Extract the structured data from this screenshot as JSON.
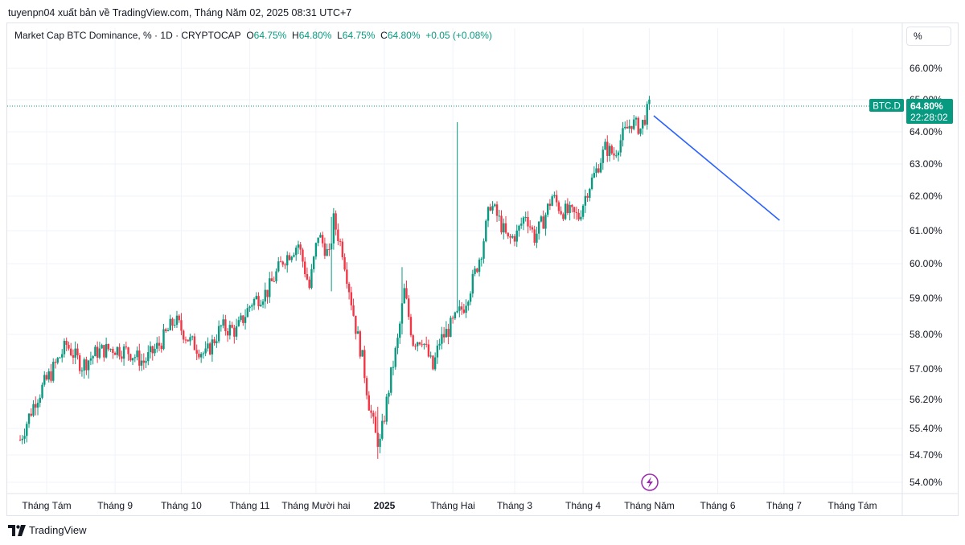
{
  "header": {
    "publisher_text": "tuyenpn04 xuất bản về TradingView.com, Tháng Năm 02, 2025 08:31 UTC+7"
  },
  "legend": {
    "symbol": "Market Cap BTC Dominance, % · 1D · CRYPTOCAP",
    "o_label": "O",
    "o_value": "64.75%",
    "h_label": "H",
    "h_value": "64.80%",
    "l_label": "L",
    "l_value": "64.75%",
    "c_label": "C",
    "c_value": "64.80%",
    "change": "+0.05 (+0.08%)"
  },
  "toolbar": {
    "unit_label": "%"
  },
  "price_badge": {
    "symbol": "BTC.D",
    "price": "64.80%",
    "countdown": "22:28:02"
  },
  "footer": {
    "brand": "TradingView"
  },
  "colors": {
    "up": "#089981",
    "down": "#f23645",
    "trendline": "#2962ff",
    "grid": "#f0f3fa",
    "badge": "#089981",
    "lightning": "#9c27b0"
  },
  "icons": {
    "lightning": "lightning-icon",
    "logo": "tradingview-logo-icon"
  },
  "chart_data": {
    "type": "candlestick",
    "title": "Market Cap BTC Dominance, % · 1D · CRYPTOCAP",
    "y_ticks": [
      "66.00%",
      "65.00%",
      "64.00%",
      "63.00%",
      "62.00%",
      "61.00%",
      "60.00%",
      "59.00%",
      "58.00%",
      "57.00%",
      "56.20%",
      "55.40%",
      "54.70%",
      "54.00%"
    ],
    "y_tick_values": [
      66.0,
      65.0,
      64.0,
      63.0,
      62.0,
      61.0,
      60.0,
      59.0,
      58.0,
      57.0,
      56.2,
      55.4,
      54.7,
      54.0
    ],
    "x_ticks": [
      "Tháng Tám",
      "Tháng 9",
      "Tháng 10",
      "Tháng 11",
      "Tháng Mười hai",
      "2025",
      "Tháng Hai",
      "Tháng 3",
      "Tháng 4",
      "Tháng Năm",
      "Tháng 6",
      "Tháng 7",
      "Tháng Tám"
    ],
    "x_tick_dates": [
      "2024-08-01",
      "2024-09-01",
      "2024-10-01",
      "2024-11-01",
      "2024-12-01",
      "2025-01-01",
      "2025-02-01",
      "2025-03-01",
      "2025-04-01",
      "2025-05-01",
      "2025-06-01",
      "2025-07-01",
      "2025-08-01"
    ],
    "bold_ticks": [
      "2025"
    ],
    "last_price": 64.8,
    "trendline": {
      "start": [
        "2025-05-03",
        64.5
      ],
      "end": [
        "2025-06-29",
        61.3
      ]
    },
    "price_path": [
      [
        "2024-07-20",
        55.1
      ],
      [
        "2024-07-27",
        56.2
      ],
      [
        "2024-08-03",
        56.9
      ],
      [
        "2024-08-10",
        57.7
      ],
      [
        "2024-08-17",
        57.1
      ],
      [
        "2024-08-24",
        57.5
      ],
      [
        "2024-08-31",
        57.6
      ],
      [
        "2024-09-07",
        57.5
      ],
      [
        "2024-09-14",
        57.2
      ],
      [
        "2024-09-21",
        57.7
      ],
      [
        "2024-09-28",
        58.4
      ],
      [
        "2024-10-05",
        57.8
      ],
      [
        "2024-10-12",
        57.4
      ],
      [
        "2024-10-19",
        58.2
      ],
      [
        "2024-10-26",
        58.1
      ],
      [
        "2024-11-02",
        58.9
      ],
      [
        "2024-11-09",
        59.2
      ],
      [
        "2024-11-16",
        60.1
      ],
      [
        "2024-11-23",
        60.6
      ],
      [
        "2024-11-28",
        59.3
      ],
      [
        "2024-12-02",
        60.9
      ],
      [
        "2024-12-07",
        60.2
      ],
      [
        "2024-12-09",
        61.3
      ],
      [
        "2024-12-13",
        60.4
      ],
      [
        "2024-12-16",
        59.3
      ],
      [
        "2024-12-19",
        58.2
      ],
      [
        "2024-12-22",
        57.3
      ],
      [
        "2024-12-25",
        56.1
      ],
      [
        "2024-12-28",
        55.2
      ],
      [
        "2024-12-30",
        55.0
      ],
      [
        "2025-01-03",
        56.5
      ],
      [
        "2025-01-07",
        57.8
      ],
      [
        "2025-01-10",
        59.2
      ],
      [
        "2025-01-14",
        57.8
      ],
      [
        "2025-01-18",
        57.9
      ],
      [
        "2025-01-23",
        57.0
      ],
      [
        "2025-01-26",
        57.8
      ],
      [
        "2025-02-01",
        58.3
      ],
      [
        "2025-02-06",
        58.8
      ],
      [
        "2025-02-10",
        59.5
      ],
      [
        "2025-02-14",
        60.4
      ],
      [
        "2025-02-18",
        61.8
      ],
      [
        "2025-02-22",
        61.3
      ],
      [
        "2025-02-26",
        60.7
      ],
      [
        "2025-03-02",
        60.9
      ],
      [
        "2025-03-06",
        61.5
      ],
      [
        "2025-03-10",
        60.8
      ],
      [
        "2025-03-14",
        61.3
      ],
      [
        "2025-03-18",
        62.0
      ],
      [
        "2025-03-22",
        61.6
      ],
      [
        "2025-03-26",
        61.5
      ],
      [
        "2025-03-30",
        61.4
      ],
      [
        "2025-04-03",
        62.2
      ],
      [
        "2025-04-07",
        62.8
      ],
      [
        "2025-04-11",
        63.5
      ],
      [
        "2025-04-15",
        63.3
      ],
      [
        "2025-04-19",
        63.9
      ],
      [
        "2025-04-23",
        64.3
      ],
      [
        "2025-04-27",
        64.1
      ],
      [
        "2025-05-01",
        64.8
      ]
    ],
    "spikes": [
      [
        "2024-12-08",
        61.4,
        59.2
      ],
      [
        "2024-12-29",
        54.6,
        56.0
      ],
      [
        "2025-01-09",
        59.9,
        58.0
      ],
      [
        "2025-02-03",
        64.3,
        59.0
      ]
    ]
  }
}
